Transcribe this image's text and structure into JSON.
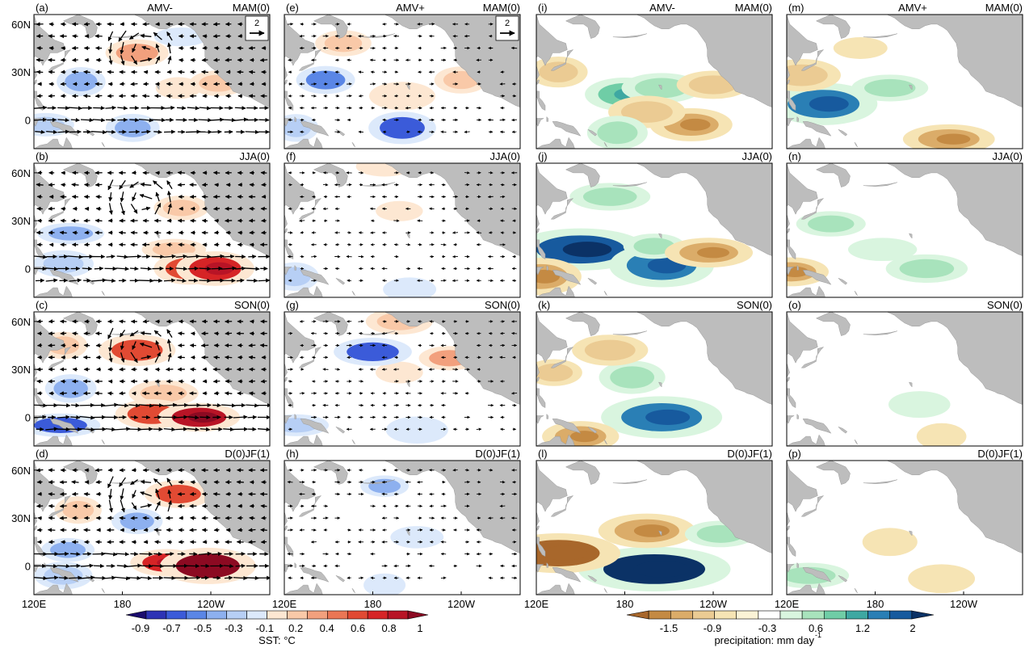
{
  "figure": {
    "type": "multi-panel map grid",
    "columns": [
      {
        "variable": "SST and surface wind",
        "case": "AMV-"
      },
      {
        "variable": "SST and surface wind",
        "case": "AMV+"
      },
      {
        "variable": "precipitation",
        "case": "AMV-"
      },
      {
        "variable": "precipitation",
        "case": "AMV+"
      }
    ]
  },
  "chart_data": {
    "type": "heatmap",
    "panels": [
      {
        "label": "(a)",
        "case": "AMV-",
        "season": "MAM(0)",
        "field": "sst_wind",
        "has_ref_vector": true,
        "anomalies": [
          {
            "kind": "warm",
            "lon": 190,
            "lat": 42,
            "value": 0.4
          },
          {
            "kind": "warm",
            "lon": 218,
            "lat": 20,
            "value": 0.2
          },
          {
            "kind": "warm",
            "lon": 245,
            "lat": 23,
            "value": 0.3
          },
          {
            "kind": "cold",
            "lon": 152,
            "lat": 24,
            "value": -0.3
          },
          {
            "kind": "cold",
            "lon": 128,
            "lat": -3,
            "value": -0.2
          },
          {
            "kind": "cold",
            "lon": 187,
            "lat": -5,
            "value": -0.3
          },
          {
            "kind": "cold",
            "lon": 220,
            "lat": 52,
            "value": -0.1
          }
        ]
      },
      {
        "label": "(b)",
        "case": "AMV-",
        "season": "JJA(0)",
        "field": "sst_wind",
        "has_ref_vector": false,
        "anomalies": [
          {
            "kind": "warm",
            "lon": 215,
            "lat": 12,
            "value": 0.3
          },
          {
            "kind": "warm",
            "lon": 220,
            "lat": 38,
            "value": 0.3
          },
          {
            "kind": "warm",
            "lon": 225,
            "lat": 0,
            "value": 0.6
          },
          {
            "kind": "warm",
            "lon": 243,
            "lat": 0,
            "value": 0.8
          },
          {
            "kind": "cold",
            "lon": 145,
            "lat": 22,
            "value": -0.3
          },
          {
            "kind": "cold",
            "lon": 140,
            "lat": 3,
            "value": -0.2
          }
        ]
      },
      {
        "label": "(c)",
        "case": "AMV-",
        "season": "SON(0)",
        "field": "sst_wind",
        "has_ref_vector": false,
        "anomalies": [
          {
            "kind": "warm",
            "lon": 208,
            "lat": 15,
            "value": 0.3
          },
          {
            "kind": "warm",
            "lon": 200,
            "lat": 2,
            "value": 0.6
          },
          {
            "kind": "warm",
            "lon": 232,
            "lat": 0,
            "value": 0.9
          },
          {
            "kind": "warm",
            "lon": 190,
            "lat": 42,
            "value": 0.6
          },
          {
            "kind": "warm",
            "lon": 140,
            "lat": 45,
            "value": 0.3
          },
          {
            "kind": "cold",
            "lon": 145,
            "lat": 18,
            "value": -0.3
          },
          {
            "kind": "cold",
            "lon": 138,
            "lat": -5,
            "value": -0.5
          }
        ]
      },
      {
        "label": "(d)",
        "case": "AMV-",
        "season": "D(0)JF(1)",
        "field": "sst_wind",
        "has_ref_vector": false,
        "anomalies": [
          {
            "kind": "warm",
            "lon": 210,
            "lat": 2,
            "value": 0.8
          },
          {
            "kind": "warm",
            "lon": 238,
            "lat": 0,
            "value": 1.0
          },
          {
            "kind": "warm",
            "lon": 218,
            "lat": 45,
            "value": 0.6
          },
          {
            "kind": "warm",
            "lon": 150,
            "lat": 35,
            "value": 0.3
          },
          {
            "kind": "cold",
            "lon": 143,
            "lat": 10,
            "value": -0.3
          },
          {
            "kind": "cold",
            "lon": 140,
            "lat": -6,
            "value": -0.2
          },
          {
            "kind": "cold",
            "lon": 190,
            "lat": 28,
            "value": -0.3
          }
        ]
      },
      {
        "label": "(e)",
        "case": "AMV+",
        "season": "MAM(0)",
        "field": "sst_wind",
        "has_ref_vector": true,
        "anomalies": [
          {
            "kind": "warm",
            "lon": 160,
            "lat": 48,
            "value": 0.3
          },
          {
            "kind": "warm",
            "lon": 200,
            "lat": 15,
            "value": 0.2
          },
          {
            "kind": "warm",
            "lon": 240,
            "lat": 25,
            "value": 0.3
          },
          {
            "kind": "cold",
            "lon": 148,
            "lat": 25,
            "value": -0.4
          },
          {
            "kind": "cold",
            "lon": 200,
            "lat": -5,
            "value": -0.5
          },
          {
            "kind": "cold",
            "lon": 128,
            "lat": -5,
            "value": -0.2
          }
        ]
      },
      {
        "label": "(f)",
        "case": "AMV+",
        "season": "JJA(0)",
        "field": "sst_wind",
        "has_ref_vector": false,
        "anomalies": [
          {
            "kind": "warm",
            "lon": 188,
            "lat": 64,
            "value": 0.2
          },
          {
            "kind": "warm",
            "lon": 198,
            "lat": 36,
            "value": 0.2
          },
          {
            "kind": "cold",
            "lon": 127,
            "lat": -5,
            "value": -0.2
          },
          {
            "kind": "cold",
            "lon": 205,
            "lat": -13,
            "value": -0.1
          }
        ]
      },
      {
        "label": "(g)",
        "case": "AMV+",
        "season": "SON(0)",
        "field": "sst_wind",
        "has_ref_vector": false,
        "anomalies": [
          {
            "kind": "warm",
            "lon": 198,
            "lat": 60,
            "value": 0.3
          },
          {
            "kind": "warm",
            "lon": 232,
            "lat": 37,
            "value": 0.4
          },
          {
            "kind": "warm",
            "lon": 198,
            "lat": 28,
            "value": 0.2
          },
          {
            "kind": "cold",
            "lon": 180,
            "lat": 41,
            "value": -0.5
          },
          {
            "kind": "cold",
            "lon": 128,
            "lat": -5,
            "value": -0.2
          },
          {
            "kind": "cold",
            "lon": 210,
            "lat": -8,
            "value": -0.1
          }
        ]
      },
      {
        "label": "(h)",
        "case": "AMV+",
        "season": "D(0)JF(1)",
        "field": "sst_wind",
        "has_ref_vector": false,
        "anomalies": [
          {
            "kind": "cold",
            "lon": 188,
            "lat": 50,
            "value": -0.3
          },
          {
            "kind": "cold",
            "lon": 210,
            "lat": 18,
            "value": -0.1
          },
          {
            "kind": "cold",
            "lon": 188,
            "lat": -12,
            "value": -0.1
          }
        ]
      },
      {
        "label": "(i)",
        "case": "AMV-",
        "season": "MAM(0)",
        "field": "precip",
        "has_ref_vector": false,
        "anomalies": [
          {
            "kind": "wet",
            "lon": 180,
            "lat": 16,
            "value": 0.9
          },
          {
            "kind": "wet",
            "lon": 205,
            "lat": 20,
            "value": 0.6
          },
          {
            "kind": "dry",
            "lon": 135,
            "lat": 30,
            "value": -0.5
          },
          {
            "kind": "dry",
            "lon": 240,
            "lat": 22,
            "value": -0.6
          },
          {
            "kind": "dry",
            "lon": 225,
            "lat": -3,
            "value": -0.9
          },
          {
            "kind": "dry",
            "lon": 195,
            "lat": 5,
            "value": -0.5
          },
          {
            "kind": "wet",
            "lon": 175,
            "lat": -8,
            "value": 0.6
          }
        ]
      },
      {
        "label": "(j)",
        "case": "AMV-",
        "season": "JJA(0)",
        "field": "precip",
        "has_ref_vector": false,
        "anomalies": [
          {
            "kind": "wet",
            "lon": 150,
            "lat": 12,
            "value": 2.0
          },
          {
            "kind": "wet",
            "lon": 205,
            "lat": 2,
            "value": 1.6
          },
          {
            "kind": "wet",
            "lon": 200,
            "lat": 14,
            "value": 0.6
          },
          {
            "kind": "wet",
            "lon": 170,
            "lat": 45,
            "value": 0.6
          },
          {
            "kind": "dry",
            "lon": 237,
            "lat": 10,
            "value": -0.9
          },
          {
            "kind": "dry",
            "lon": 123,
            "lat": -5,
            "value": -0.9
          }
        ]
      },
      {
        "label": "(k)",
        "case": "AMV-",
        "season": "SON(0)",
        "field": "precip",
        "has_ref_vector": false,
        "anomalies": [
          {
            "kind": "wet",
            "lon": 205,
            "lat": 0,
            "value": 1.6
          },
          {
            "kind": "wet",
            "lon": 185,
            "lat": 25,
            "value": 0.6
          },
          {
            "kind": "dry",
            "lon": 132,
            "lat": 28,
            "value": -0.5
          },
          {
            "kind": "dry",
            "lon": 150,
            "lat": -12,
            "value": -0.9
          },
          {
            "kind": "dry",
            "lon": 170,
            "lat": 42,
            "value": -0.5
          }
        ]
      },
      {
        "label": "(l)",
        "case": "AMV-",
        "season": "D(0)JF(1)",
        "field": "precip",
        "has_ref_vector": false,
        "anomalies": [
          {
            "kind": "wet",
            "lon": 200,
            "lat": -2,
            "value": 2.2
          },
          {
            "kind": "dry",
            "lon": 135,
            "lat": 8,
            "value": -1.8
          },
          {
            "kind": "dry",
            "lon": 195,
            "lat": 22,
            "value": -0.9
          },
          {
            "kind": "wet",
            "lon": 245,
            "lat": 20,
            "value": 0.6
          }
        ]
      },
      {
        "label": "(m)",
        "case": "AMV+",
        "season": "MAM(0)",
        "field": "precip",
        "has_ref_vector": false,
        "anomalies": [
          {
            "kind": "wet",
            "lon": 145,
            "lat": 10,
            "value": 1.6
          },
          {
            "kind": "wet",
            "lon": 190,
            "lat": 20,
            "value": 0.6
          },
          {
            "kind": "dry",
            "lon": 130,
            "lat": 28,
            "value": -0.5
          },
          {
            "kind": "dry",
            "lon": 230,
            "lat": -12,
            "value": -0.9
          },
          {
            "kind": "dry",
            "lon": 170,
            "lat": 45,
            "value": -0.3
          }
        ]
      },
      {
        "label": "(n)",
        "case": "AMV+",
        "season": "JJA(0)",
        "field": "precip",
        "has_ref_vector": false,
        "anomalies": [
          {
            "kind": "wet",
            "lon": 150,
            "lat": 28,
            "value": 0.6
          },
          {
            "kind": "wet",
            "lon": 215,
            "lat": 0,
            "value": 0.6
          },
          {
            "kind": "wet",
            "lon": 185,
            "lat": 12,
            "value": 0.3
          },
          {
            "kind": "dry",
            "lon": 123,
            "lat": -2,
            "value": -0.9
          }
        ]
      },
      {
        "label": "(o)",
        "case": "AMV+",
        "season": "SON(0)",
        "field": "precip",
        "has_ref_vector": false,
        "anomalies": [
          {
            "kind": "wet",
            "lon": 210,
            "lat": 8,
            "value": 0.3
          },
          {
            "kind": "dry",
            "lon": 225,
            "lat": -12,
            "value": -0.3
          }
        ]
      },
      {
        "label": "(p)",
        "case": "AMV+",
        "season": "D(0)JF(1)",
        "field": "precip",
        "has_ref_vector": false,
        "anomalies": [
          {
            "kind": "wet",
            "lon": 135,
            "lat": -6,
            "value": 0.6
          },
          {
            "kind": "dry",
            "lon": 190,
            "lat": 15,
            "value": -0.3
          },
          {
            "kind": "dry",
            "lon": 225,
            "lat": -8,
            "value": -0.3
          }
        ]
      }
    ],
    "map_extent": {
      "lon": [
        120,
        280
      ],
      "lat": [
        -18,
        66
      ]
    },
    "lat_ticks": [
      60,
      30,
      0
    ],
    "lat_tick_labels": [
      "60N",
      "30N",
      "0"
    ],
    "lon_ticks": [
      120,
      180,
      240
    ],
    "lon_tick_labels": [
      "120E",
      "180",
      "120W"
    ],
    "reference_vector_label": "2",
    "sst_colorbar": {
      "title": "SST: °C",
      "tick_labels": [
        "-0.9",
        "-0.7",
        "-0.5",
        "-0.3",
        "-0.1",
        "0.2",
        "0.4",
        "0.6",
        "0.8",
        "1"
      ],
      "colors": [
        "#1b0c6e",
        "#2d33b5",
        "#3b5bd9",
        "#5a86e6",
        "#8db0ef",
        "#b7cff5",
        "#dce9fb",
        "#fde7d2",
        "#f9c9a8",
        "#f2a07d",
        "#ea7655",
        "#e14a33",
        "#d62426",
        "#b81426",
        "#8c0a22"
      ]
    },
    "precip_colorbar": {
      "title": "precipitation: mm day",
      "title_superscript": "-1",
      "tick_labels": [
        "-1.5",
        "-0.9",
        "-0.3",
        "0.6",
        "1.2",
        "2"
      ],
      "colors": [
        "#a8672b",
        "#c48a43",
        "#dbac69",
        "#ebcb93",
        "#f6e4b4",
        "#fbf3d6",
        "#ffffff",
        "#d9f5df",
        "#a8e3bc",
        "#6fcda6",
        "#3ea8a2",
        "#2a7fb5",
        "#175a9e",
        "#0b3266"
      ]
    }
  }
}
